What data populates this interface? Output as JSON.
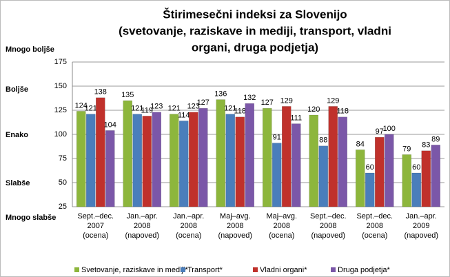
{
  "chart_data": {
    "type": "bar",
    "title": [
      "Štirimesečni indeksi za Slovenijo",
      "(svetovanje, raziskave in mediji, transport, vladni",
      "organi, druga podjetja)"
    ],
    "side_labels": [
      "Mnogo boljše",
      "Boljše",
      "Enako",
      "Slabše",
      "Mnogo slabše"
    ],
    "categories": [
      [
        "Sept.–dec.",
        "2007",
        "(ocena)"
      ],
      [
        "Jan.–apr.",
        "2008",
        "(napoved)"
      ],
      [
        "Jan.–apr.",
        "2008",
        "(ocena)"
      ],
      [
        "Maj–avg.",
        "2008",
        "(napoved)"
      ],
      [
        "Maj–avg.",
        "2008",
        "(ocena)"
      ],
      [
        "Sept.–dec.",
        "2008",
        "(napoved)"
      ],
      [
        "Sept.–dec.",
        "2008",
        "(ocena)"
      ],
      [
        "Jan.–apr.",
        "2009",
        "(napoved)"
      ]
    ],
    "series": [
      {
        "name": "Svetovanje, raziskave in mediji*",
        "color": "#8db63c",
        "values": [
          124,
          135,
          121,
          136,
          127,
          120,
          84,
          79
        ]
      },
      {
        "name": "Transport*",
        "color": "#4a7ebb",
        "values": [
          121,
          121,
          114,
          121,
          91,
          88,
          60,
          60
        ]
      },
      {
        "name": "Vladni organi*",
        "color": "#c0312b",
        "values": [
          138,
          119,
          123,
          118,
          129,
          129,
          97,
          83
        ]
      },
      {
        "name": "Druga podjetja*",
        "color": "#7b57a8",
        "values": [
          104,
          123,
          127,
          132,
          111,
          118,
          100,
          89
        ]
      }
    ],
    "ylim": [
      25,
      175
    ],
    "yticks": [
      25,
      50,
      75,
      100,
      125,
      150,
      175
    ],
    "grid": true,
    "legend": "bottom"
  }
}
